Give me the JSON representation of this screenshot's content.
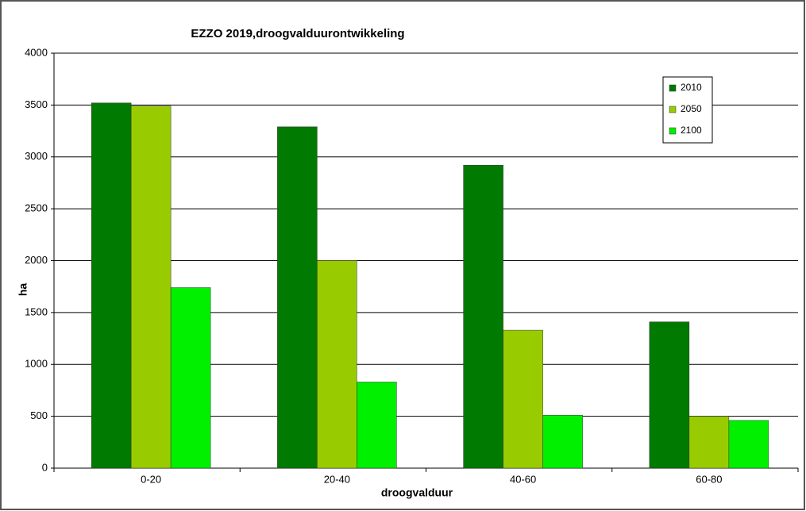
{
  "chart_data": {
    "type": "bar",
    "title": "EZZO  2019,droogvalduurontwikkeling",
    "x_label": "droogvalduur",
    "y_label": "ha",
    "categories": [
      "0-20",
      "20-40",
      "40-60",
      "60-80"
    ],
    "series": [
      {
        "name": "2010",
        "color": "#007a00",
        "values": [
          3520,
          3290,
          2920,
          1410
        ]
      },
      {
        "name": "2050",
        "color": "#99cc00",
        "values": [
          3490,
          2000,
          1330,
          500
        ]
      },
      {
        "name": "2100",
        "color": "#00f000",
        "values": [
          1740,
          830,
          510,
          460
        ]
      }
    ],
    "ylim": [
      0,
      4000
    ],
    "yticks": [
      0,
      500,
      1000,
      1500,
      2000,
      2500,
      3000,
      3500,
      4000
    ],
    "grid": true,
    "legend": "upper right"
  }
}
